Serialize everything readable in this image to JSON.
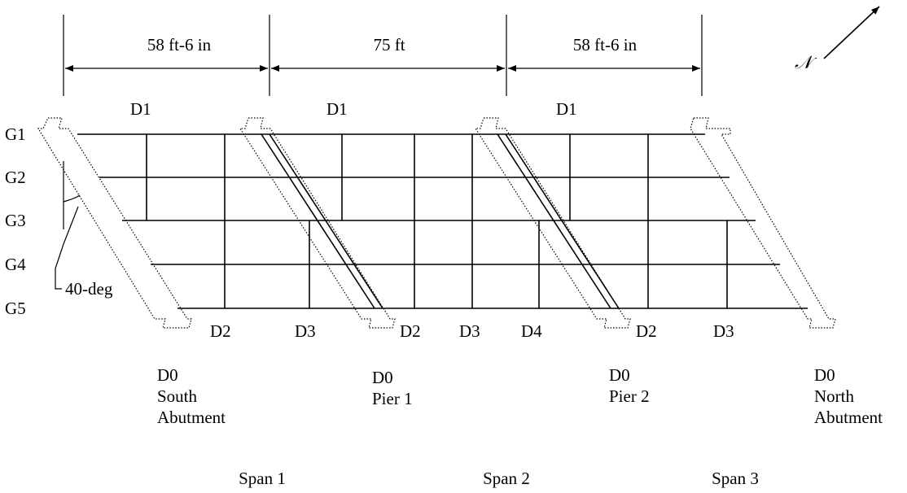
{
  "dimensions": {
    "span_1": "58 ft-6 in",
    "span_2": "75 ft",
    "span_3": "58 ft-6 in"
  },
  "north_label": "𝒩",
  "skew_label": "40-deg",
  "girders": [
    "G1",
    "G2",
    "G3",
    "G4",
    "G5"
  ],
  "diaphragms_top": [
    "D1",
    "D1",
    "D1"
  ],
  "diaphragms_bottom": [
    "D2",
    "D3",
    "D2",
    "D3",
    "D4",
    "D2",
    "D3"
  ],
  "supports": [
    {
      "line1": "D0",
      "line2": "South",
      "line3": "Abutment"
    },
    {
      "line1": "D0",
      "line2": "Pier 1",
      "line3": ""
    },
    {
      "line1": "D0",
      "line2": "Pier 2",
      "line3": ""
    },
    {
      "line1": "D0",
      "line2": "North",
      "line3": "Abutment"
    }
  ],
  "spans": [
    "Span 1",
    "Span 2",
    "Span 3"
  ]
}
